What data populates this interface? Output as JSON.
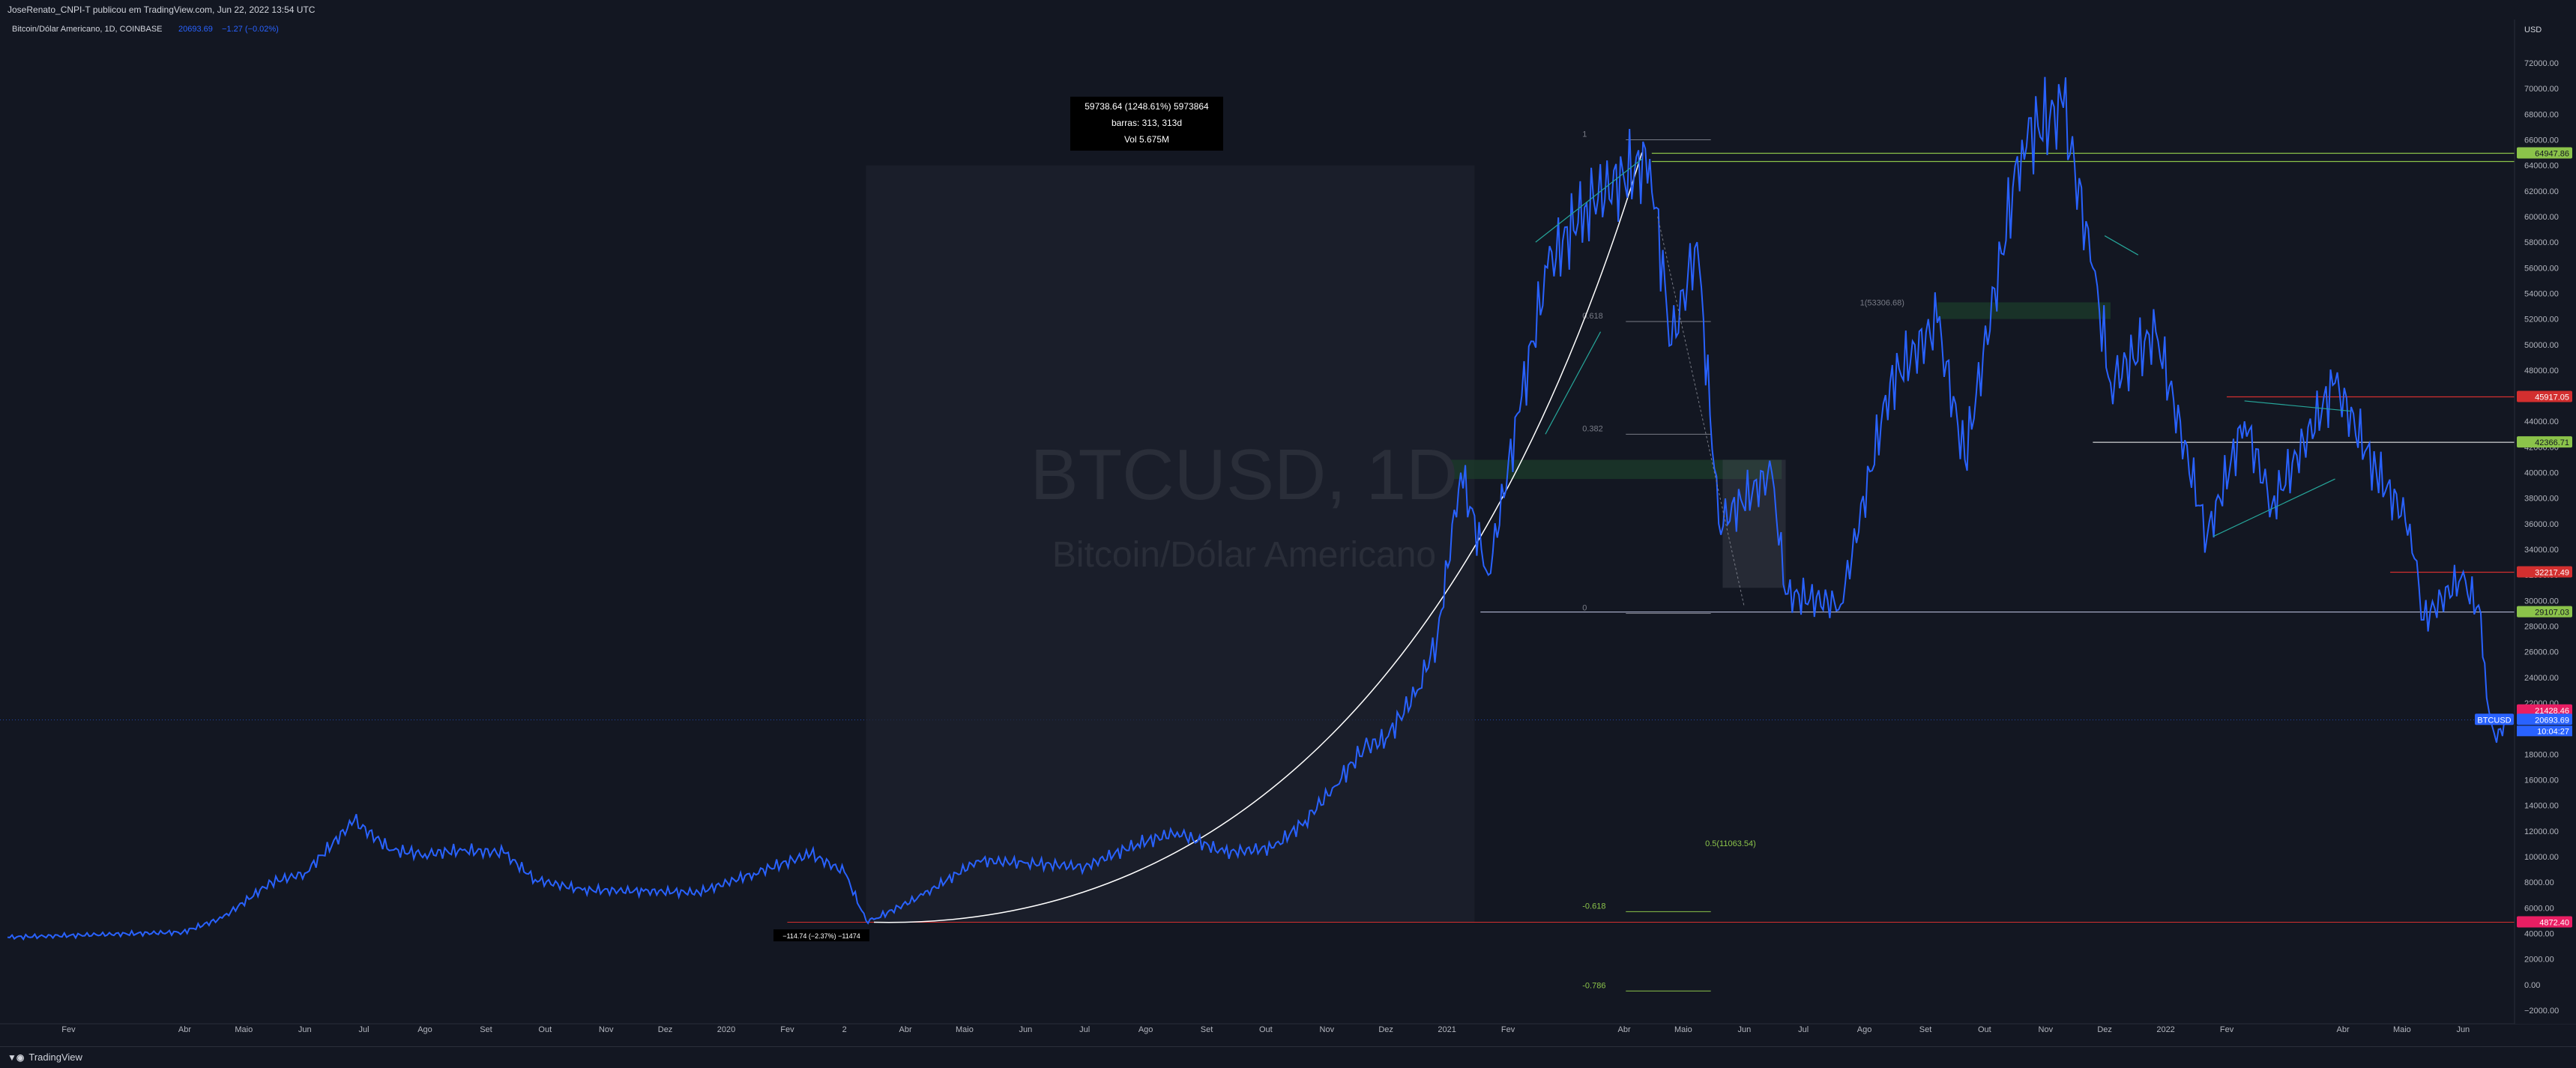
{
  "header": {
    "publish_line": "JoseRenato_CNPI-T publicou em TradingView.com, Jun 22, 2022 13:54 UTC"
  },
  "legend": {
    "name": "Bitcoin/Dólar Americano, 1D, COINBASE",
    "price": "20693.69",
    "change": "−1.27 (−0.02%)"
  },
  "watermark": {
    "symbol": "BTCUSD, 1D",
    "description": "Bitcoin/Dólar Americano"
  },
  "footer": {
    "brand": "TradingView"
  },
  "colors": {
    "background": "#131722",
    "price_line": "#2962ff",
    "support_green": "#8bc34a",
    "resistance_red": "#d32f2f",
    "current_price": "#2962ff"
  },
  "chart_data": {
    "type": "line",
    "symbol": "BTCUSD",
    "currency": "USD",
    "ylim": [
      -2000,
      74000
    ],
    "y_ticks": [
      "−2000.00",
      "0.00",
      "2000.00",
      "4000.00",
      "6000.00",
      "8000.00",
      "10000.00",
      "12000.00",
      "14000.00",
      "16000.00",
      "18000.00",
      "20000.00",
      "22000.00",
      "24000.00",
      "26000.00",
      "28000.00",
      "30000.00",
      "32000.00",
      "34000.00",
      "36000.00",
      "38000.00",
      "40000.00",
      "42000.00",
      "44000.00",
      "46000.00",
      "48000.00",
      "50000.00",
      "52000.00",
      "54000.00",
      "56000.00",
      "58000.00",
      "60000.00",
      "62000.00",
      "64000.00",
      "66000.00",
      "68000.00",
      "70000.00",
      "72000.00"
    ],
    "x_ticks": [
      "Fev",
      "Abr",
      "Maio",
      "Jun",
      "Jul",
      "Ago",
      "Set",
      "Out",
      "Nov",
      "Dez",
      "2020",
      "Fev",
      "2",
      "Abr",
      "Maio",
      "Jun",
      "Jul",
      "Ago",
      "Set",
      "Out",
      "Nov",
      "Dez",
      "2021",
      "Fev",
      "Abr",
      "Maio",
      "Jun",
      "Jul",
      "Ago",
      "Set",
      "Out",
      "Nov",
      "Dez",
      "2022",
      "Fev",
      "Abr",
      "Maio",
      "Jun"
    ],
    "series": [
      {
        "x": [
          "2019-01-01",
          "2019-02-15",
          "2019-03-31",
          "2019-04-20",
          "2019-05-15",
          "2019-06-01",
          "2019-06-26",
          "2019-07-15",
          "2019-08-01",
          "2019-08-20",
          "2019-09-10",
          "2019-09-26",
          "2019-10-20",
          "2019-11-20",
          "2019-12-18",
          "2020-01-15",
          "2020-02-13",
          "2020-03-01",
          "2020-03-12",
          "2020-03-16",
          "2020-04-10",
          "2020-05-08",
          "2020-06-01",
          "2020-07-01",
          "2020-07-28",
          "2020-08-17",
          "2020-09-10",
          "2020-10-05",
          "2020-10-21",
          "2020-11-05",
          "2020-11-20",
          "2020-12-01",
          "2020-12-17",
          "2020-12-27",
          "2021-01-08",
          "2021-01-22",
          "2021-02-08",
          "2021-02-21",
          "2021-03-13",
          "2021-04-14",
          "2021-04-25",
          "2021-05-08",
          "2021-05-19",
          "2021-06-15",
          "2021-06-22",
          "2021-07-20",
          "2021-08-14",
          "2021-09-07",
          "2021-09-21",
          "2021-10-20",
          "2021-11-10",
          "2021-11-25",
          "2021-12-04",
          "2021-12-27",
          "2022-01-22",
          "2022-02-10",
          "2022-02-24",
          "2022-03-28",
          "2022-04-18",
          "2022-05-05",
          "2022-05-12",
          "2022-05-31",
          "2022-06-10",
          "2022-06-13",
          "2022-06-18",
          "2022-06-22"
        ],
        "values": [
          3700,
          3900,
          4100,
          5200,
          8000,
          8700,
          12800,
          10500,
          10200,
          10500,
          10300,
          8200,
          7400,
          7300,
          7200,
          8700,
          10200,
          8800,
          5000,
          5100,
          7000,
          9700,
          9500,
          9200,
          11000,
          11900,
          10300,
          10700,
          12800,
          15500,
          18500,
          19200,
          23000,
          27000,
          40000,
          32000,
          46000,
          56000,
          61000,
          64500,
          50000,
          58000,
          36000,
          40000,
          30500,
          29700,
          47000,
          51700,
          41000,
          66000,
          68500,
          56000,
          47000,
          51000,
          35000,
          44000,
          37500,
          47000,
          40000,
          36000,
          28500,
          31800,
          29000,
          22400,
          18900,
          20694
        ]
      }
    ],
    "annotations": {
      "price_labels": [
        {
          "value": 64947.86,
          "text": "64947.86",
          "color": "#8bc34a"
        },
        {
          "value": 45917.05,
          "text": "45917.05",
          "color": "#d32f2f"
        },
        {
          "value": 42366.71,
          "text": "42366.71",
          "color": "#8bc34a"
        },
        {
          "value": 32217.49,
          "text": "32217.49",
          "color": "#d32f2f"
        },
        {
          "value": 29107.03,
          "text": "29107.03",
          "color": "#8bc34a"
        },
        {
          "value": 21428.46,
          "text": "21428.46",
          "color": "#e91e63"
        },
        {
          "value": 20693.69,
          "text": "20693.69",
          "color": "#2962ff"
        },
        {
          "value": 4872.4,
          "text": "4872.40",
          "color": "#e91e63"
        }
      ],
      "current_symbol_label": "BTCUSD",
      "countdown": "10:04:27",
      "currency_label": "USD",
      "measure_box": {
        "line1": "59738.64 (1248.61%) 5973864",
        "line2": "barras: 313, 313d",
        "line3": "Vol 5.675M"
      },
      "low_label": "−114.74 (−2.37%) −11474",
      "fib": [
        {
          "level": "1",
          "value": 66000
        },
        {
          "level": "0.618",
          "value": 51800
        },
        {
          "level": "0.382",
          "value": 43000
        },
        {
          "level": "0",
          "value": 29000
        },
        {
          "level": "-0.618",
          "value": 5700
        },
        {
          "level": "-0.786",
          "value": -500
        }
      ],
      "fib_labels": [
        {
          "text": "1(53306.68)",
          "value": 53306.68
        },
        {
          "text": "0.5(11063.54)",
          "value": 11063.54
        }
      ]
    }
  }
}
